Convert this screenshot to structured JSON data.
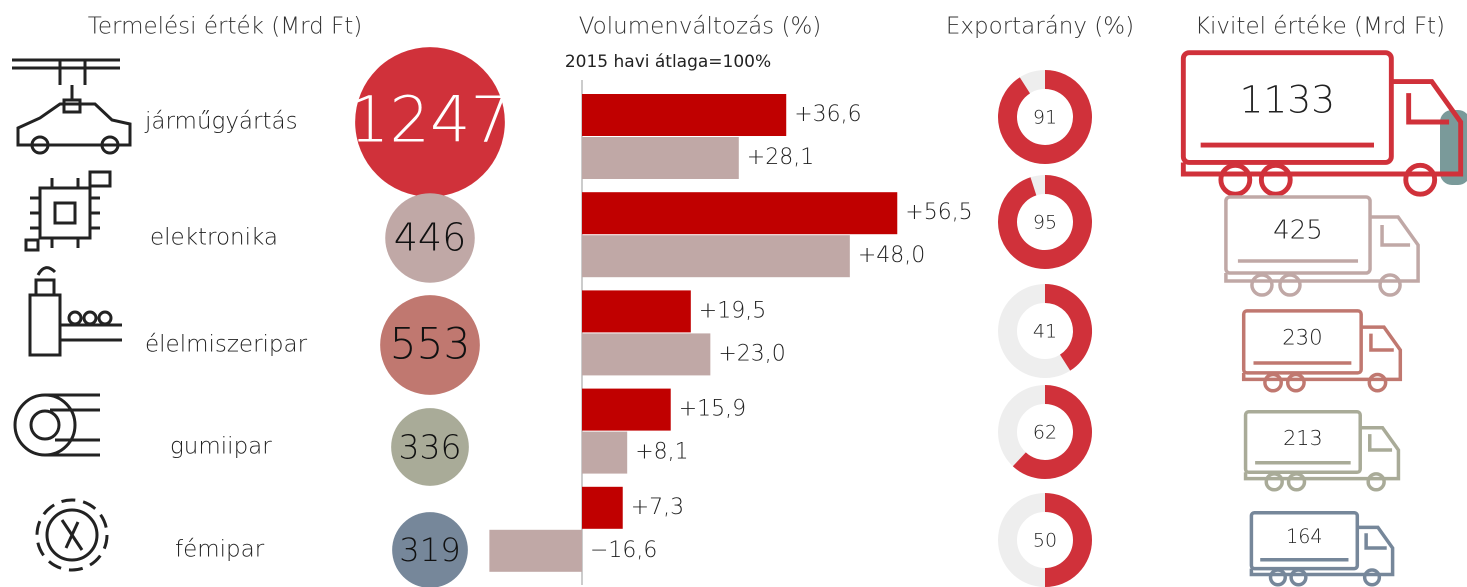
{
  "headers": {
    "production": "Termelési érték (Mrd Ft)",
    "volume": "Volumenváltozás (%)",
    "volume_note": "2015 havi átlaga=100%",
    "export_share": "Exportarány (%)",
    "export_value": "Kivitel értéke (Mrd Ft)"
  },
  "volume_colors": [
    "#c00000",
    "#c0a8a6"
  ],
  "export_share_color": "#d0313a",
  "industries": [
    {
      "name": "járműgyártás",
      "production": 1247,
      "color": "#d0313a",
      "volume": [
        36.6,
        28.1
      ],
      "volume_labels": [
        "+36,6",
        "+28,1"
      ],
      "export_share": 91,
      "export_value": 1133
    },
    {
      "name": "elektronika",
      "production": 446,
      "color": "#c0a8a6",
      "volume": [
        56.5,
        48.0
      ],
      "volume_labels": [
        "+56,5",
        "+48,0"
      ],
      "export_share": 95,
      "export_value": 425
    },
    {
      "name": "élelmiszeripar",
      "production": 553,
      "color": "#c07870",
      "volume": [
        19.5,
        23.0
      ],
      "volume_labels": [
        "+19,5",
        "+23,0"
      ],
      "export_share": 41,
      "export_value": 230
    },
    {
      "name": "gumiipar",
      "production": 336,
      "color": "#a9ab98",
      "volume": [
        15.9,
        8.1
      ],
      "volume_labels": [
        "+15,9",
        "+8,1"
      ],
      "export_share": 62,
      "export_value": 213
    },
    {
      "name": "fémipar",
      "production": 319,
      "color": "#76879a",
      "volume": [
        7.3,
        -16.6
      ],
      "volume_labels": [
        "+7,3",
        "−16,6"
      ],
      "export_share": 50,
      "export_value": 164
    }
  ]
}
